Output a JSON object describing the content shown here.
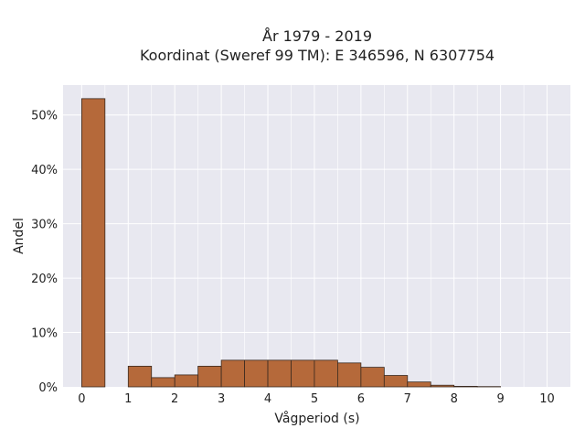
{
  "chart_data": {
    "type": "bar",
    "title_line1": "År 1979 - 2019",
    "title_line2": "Koordinat (Sweref 99 TM): E 346596, N 6307754",
    "xlabel": "Vågperiod (s)",
    "ylabel": "Andel",
    "x_ticks": [
      "0",
      "1",
      "2",
      "3",
      "4",
      "5",
      "6",
      "7",
      "8",
      "9",
      "10"
    ],
    "y_ticks": [
      "0%",
      "10%",
      "20%",
      "30%",
      "40%",
      "50%"
    ],
    "xlim": [
      -0.4,
      10.5
    ],
    "ylim": [
      0,
      55.5
    ],
    "bin_width": 0.5,
    "bins": [
      {
        "x0": 0.0,
        "value": 53.0
      },
      {
        "x0": 1.0,
        "value": 3.8
      },
      {
        "x0": 1.5,
        "value": 1.7
      },
      {
        "x0": 2.0,
        "value": 2.2
      },
      {
        "x0": 2.5,
        "value": 3.8
      },
      {
        "x0": 3.0,
        "value": 4.9
      },
      {
        "x0": 3.5,
        "value": 4.9
      },
      {
        "x0": 4.0,
        "value": 4.9
      },
      {
        "x0": 4.5,
        "value": 4.9
      },
      {
        "x0": 5.0,
        "value": 4.9
      },
      {
        "x0": 5.5,
        "value": 4.4
      },
      {
        "x0": 6.0,
        "value": 3.6
      },
      {
        "x0": 6.5,
        "value": 2.1
      },
      {
        "x0": 7.0,
        "value": 0.9
      },
      {
        "x0": 7.5,
        "value": 0.3
      },
      {
        "x0": 8.0,
        "value": 0.1
      },
      {
        "x0": 8.5,
        "value": 0.05
      }
    ],
    "bar_color": "#b5693a",
    "bar_edge": "#3a2a20",
    "plot_background": "#e8e8f0",
    "grid": true
  }
}
